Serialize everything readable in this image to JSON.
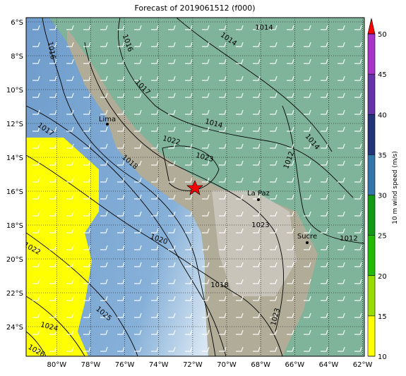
{
  "title": "Forecast of 2019061512 (f000)",
  "map": {
    "lonlim": [
      -81.8,
      -61.9
    ],
    "latlim": [
      -5.75,
      -25.75
    ],
    "lon_ticks": [
      {
        "value": -80,
        "label": "80°W"
      },
      {
        "value": -78,
        "label": "78°W"
      },
      {
        "value": -76,
        "label": "76°W"
      },
      {
        "value": -74,
        "label": "74°W"
      },
      {
        "value": -72,
        "label": "72°W"
      },
      {
        "value": -70,
        "label": "70°W"
      },
      {
        "value": -68,
        "label": "68°W"
      },
      {
        "value": -66,
        "label": "66°W"
      },
      {
        "value": -64,
        "label": "64°W"
      },
      {
        "value": -62,
        "label": "62°W"
      }
    ],
    "lat_ticks": [
      {
        "value": -6,
        "label": "6°S"
      },
      {
        "value": -8,
        "label": "8°S"
      },
      {
        "value": -10,
        "label": "10°S"
      },
      {
        "value": -12,
        "label": "12°S"
      },
      {
        "value": -14,
        "label": "14°S"
      },
      {
        "value": -16,
        "label": "16°S"
      },
      {
        "value": -18,
        "label": "18°S"
      },
      {
        "value": -20,
        "label": "20°S"
      },
      {
        "value": -22,
        "label": "22°S"
      },
      {
        "value": -24,
        "label": "24°S"
      }
    ],
    "cities": [
      "Lima",
      "La Paz",
      "Sucre"
    ],
    "contour_labels": [
      "1014",
      "1016",
      "1016",
      "1014",
      "1017",
      "1017",
      "1022",
      "1014",
      "1023",
      "1018",
      "1014",
      "1012",
      "1022",
      "1020",
      "1023",
      "1012",
      "1018",
      "1025",
      "1024",
      "1026",
      "1023"
    ]
  },
  "colorbar": {
    "label": "10 m wind speed (m/s)",
    "ticks": [
      10,
      15,
      20,
      25,
      30,
      35,
      40,
      45,
      50
    ],
    "colors": [
      "#ffff00",
      "#99dd00",
      "#22bb00",
      "#119911",
      "#3377aa",
      "#223377",
      "#6633aa",
      "#aa33cc"
    ],
    "extend_color": "#ff0000"
  }
}
